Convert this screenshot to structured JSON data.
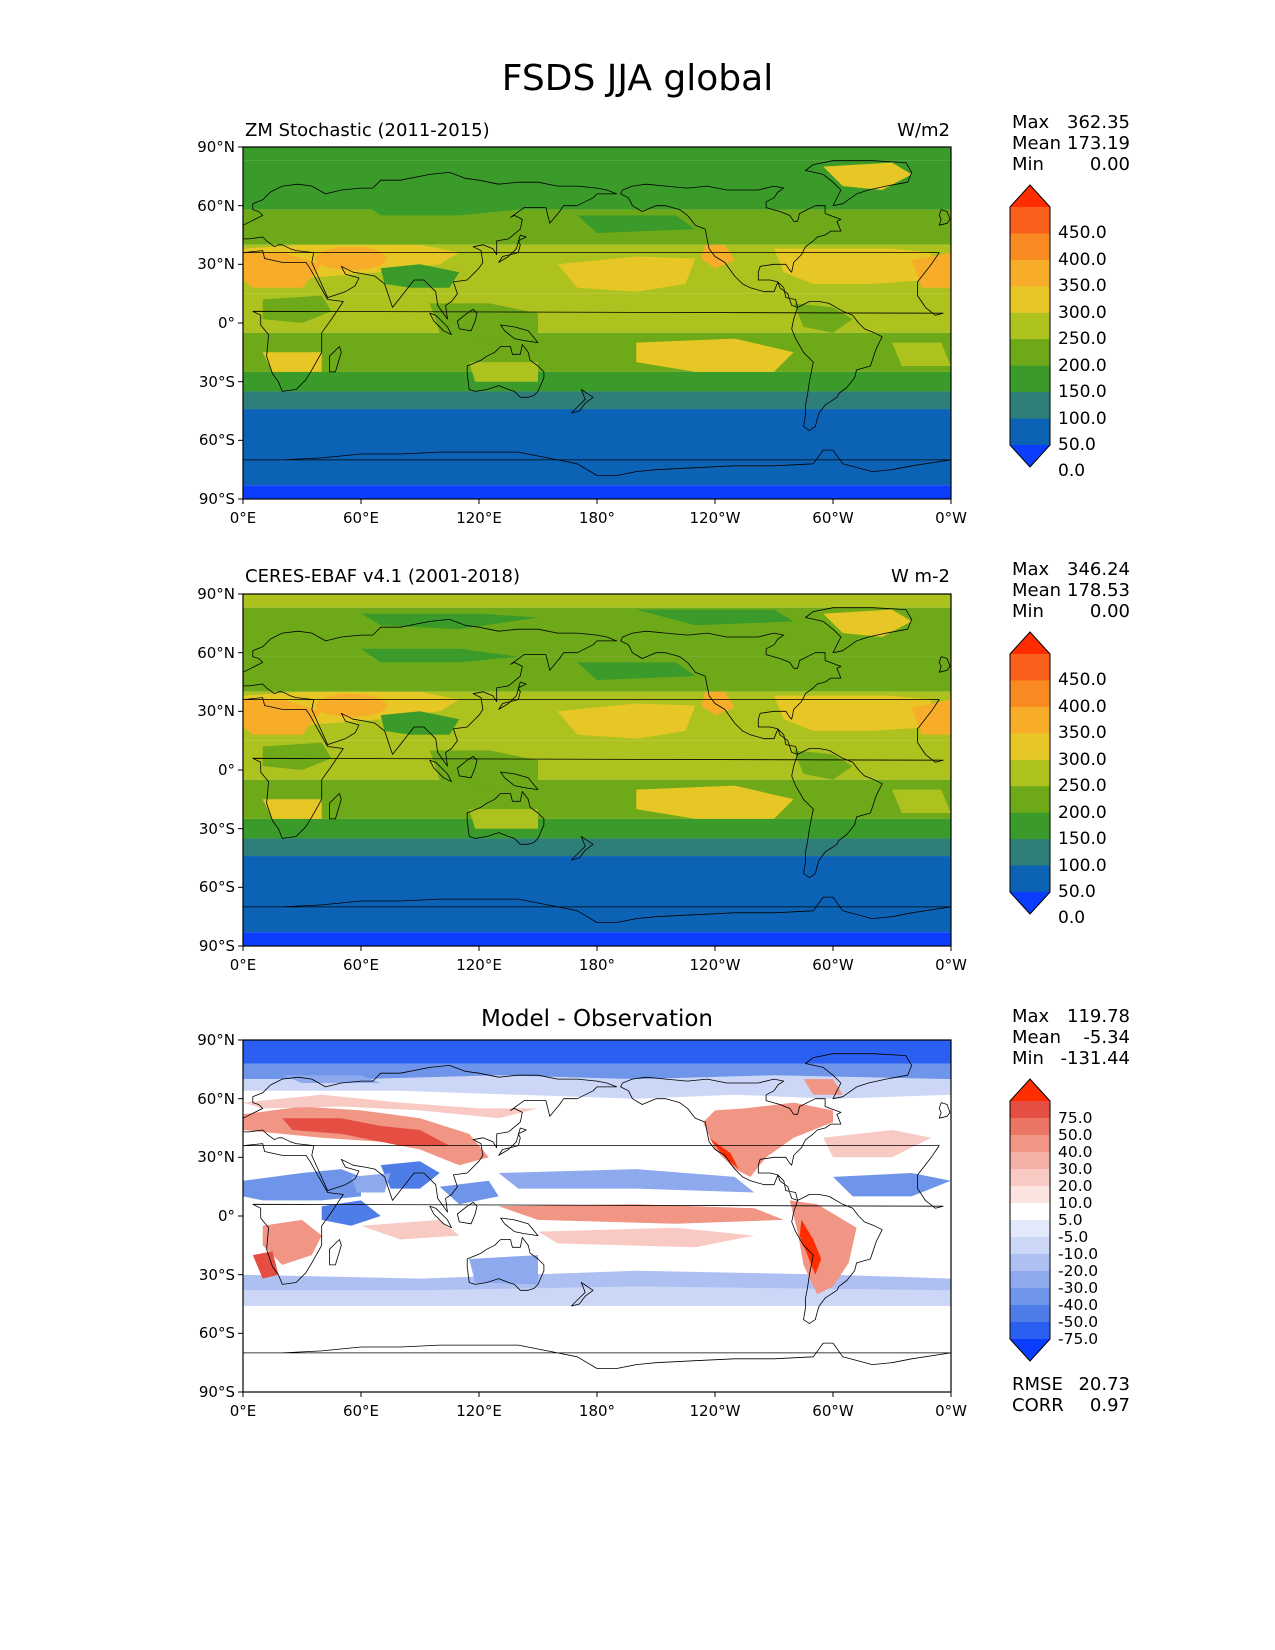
{
  "title": "FSDS JJA global",
  "colors": {
    "land_outline": "#000000",
    "abs_levels": [
      "#0b3dff",
      "#0c63b6",
      "#2e7f79",
      "#3a9b2a",
      "#6ea91a",
      "#adc21e",
      "#e7c726",
      "#f8ad2a",
      "#f98a22",
      "#fa5f1c",
      "#ff2d00"
    ],
    "diff_levels": [
      "#0b3dff",
      "#2a5ff2",
      "#4f7de8",
      "#6f95ea",
      "#8ea9ee",
      "#aebff2",
      "#ccd7f7",
      "#e3e9fb",
      "#ffffff",
      "#fbe3e0",
      "#f9cac3",
      "#f6b1a6",
      "#f19584",
      "#ea7565",
      "#e44e43",
      "#ff2d00"
    ]
  },
  "panels": [
    {
      "id": "model",
      "left_title": "ZM Stochastic (2011-2015)",
      "right_title": "W/m2",
      "center_title": "",
      "stats": {
        "max_label": "Max",
        "max": "362.35",
        "mean_label": "Mean",
        "mean": "173.19",
        "min_label": "Min",
        "min": "0.00"
      },
      "colorbar_labels": [
        "450.0",
        "400.0",
        "350.0",
        "300.0",
        "250.0",
        "200.0",
        "150.0",
        "100.0",
        "50.0",
        "0.0"
      ]
    },
    {
      "id": "obs",
      "left_title": "CERES-EBAF v4.1 (2001-2018)",
      "right_title": "W m-2",
      "center_title": "",
      "stats": {
        "max_label": "Max",
        "max": "346.24",
        "mean_label": "Mean",
        "mean": "178.53",
        "min_label": "Min",
        "min": "0.00"
      },
      "colorbar_labels": [
        "450.0",
        "400.0",
        "350.0",
        "300.0",
        "250.0",
        "200.0",
        "150.0",
        "100.0",
        "50.0",
        "0.0"
      ]
    },
    {
      "id": "diff",
      "left_title": "",
      "right_title": "",
      "center_title": "Model - Observation",
      "stats": {
        "max_label": "Max",
        "max": "119.78",
        "mean_label": "Mean",
        "mean": "-5.34",
        "min_label": "Min",
        "min": "-131.44"
      },
      "colorbar_labels": [
        "75.0",
        "50.0",
        "40.0",
        "30.0",
        "20.0",
        "10.0",
        "5.0",
        "-5.0",
        "-10.0",
        "-20.0",
        "-30.0",
        "-40.0",
        "-50.0",
        "-75.0"
      ],
      "metrics": {
        "rmse_label": "RMSE",
        "rmse": "20.73",
        "corr_label": "CORR",
        "corr": "0.97"
      }
    }
  ],
  "lat_ticks": [
    "90°N",
    "60°N",
    "30°N",
    "0°",
    "30°S",
    "60°S",
    "90°S"
  ],
  "lon_ticks": [
    "0°E",
    "60°E",
    "120°E",
    "180°",
    "120°W",
    "60°W",
    "0°W"
  ]
}
